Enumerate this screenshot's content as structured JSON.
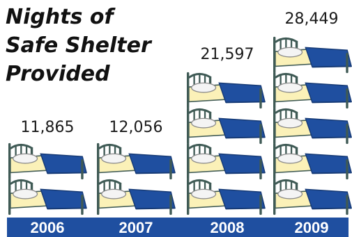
{
  "chart_data": {
    "type": "pictograph",
    "title_lines": [
      "Nights of",
      "Safe Shelter",
      "Provided"
    ],
    "categories": [
      "2006",
      "2007",
      "2008",
      "2009"
    ],
    "values": [
      11865,
      12056,
      21597,
      28449
    ],
    "value_labels": [
      "11,865",
      "12,056",
      "21,597",
      "28,449"
    ],
    "icon": "bed-icon",
    "icon_counts": [
      2,
      2,
      4,
      5
    ]
  },
  "colors": {
    "axis_band": "#1f4fa0",
    "blanket": "#1f4fa0",
    "sheet": "#fbf1b8",
    "frame": "#3f5a55",
    "pillow": "#f4f4f4",
    "text": "#1a1a1a"
  }
}
